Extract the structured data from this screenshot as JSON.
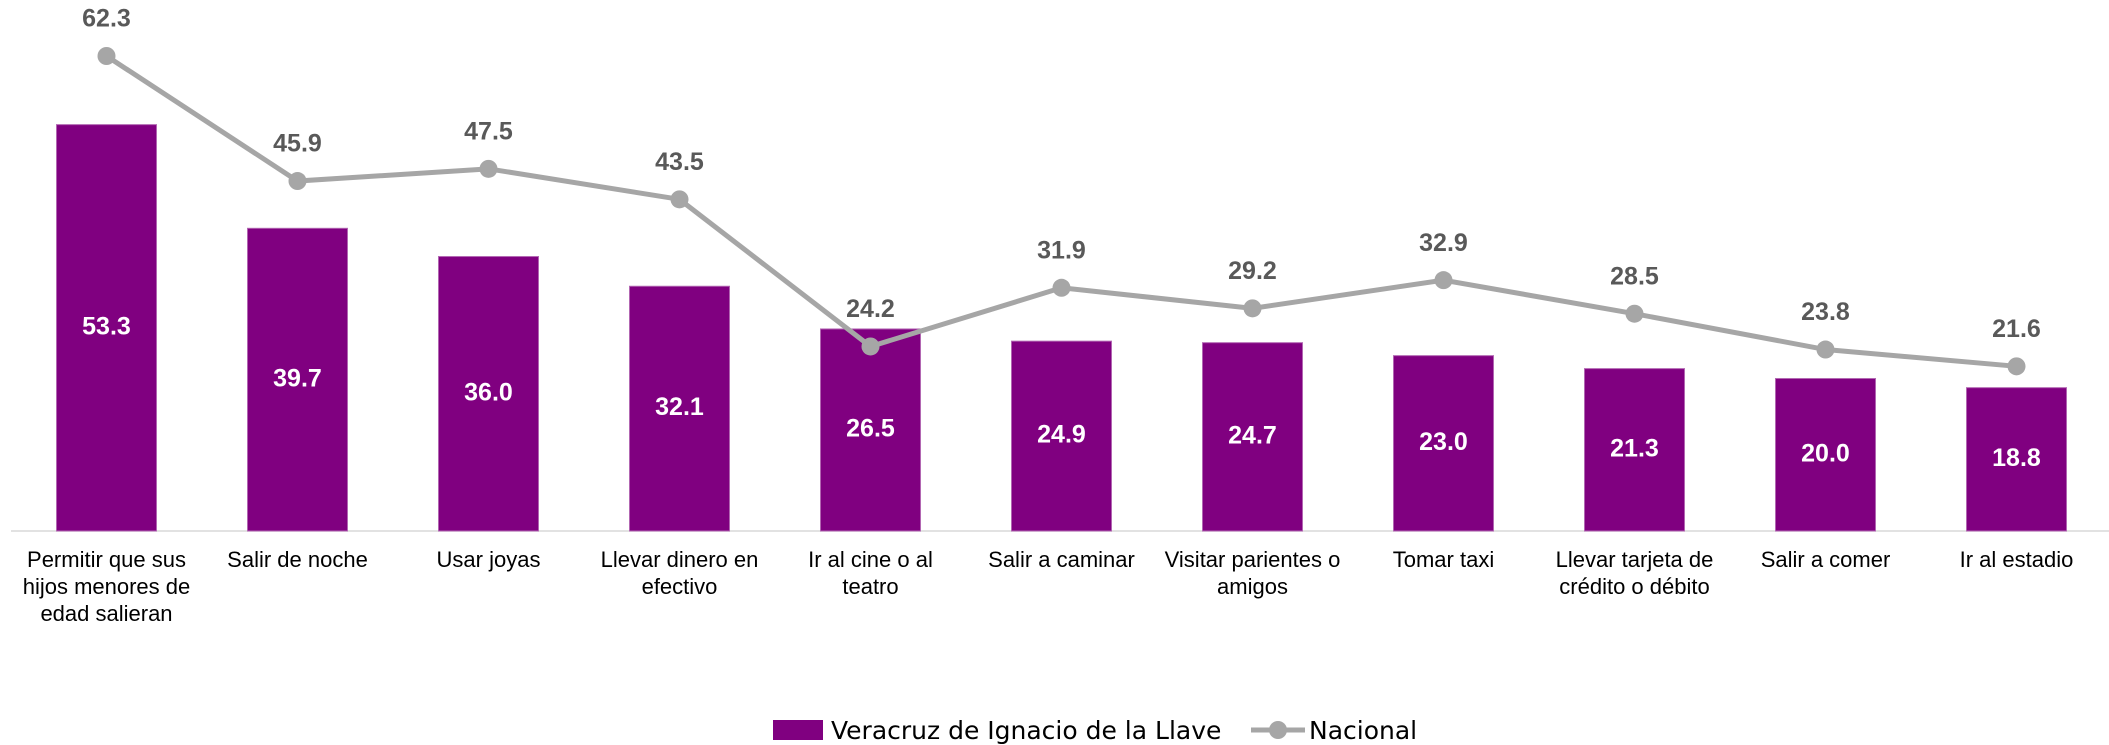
{
  "chart_data": {
    "type": "bar_line",
    "categories": [
      "Permitir que sus hijos menores de edad salieran",
      "Salir de noche",
      "Usar joyas",
      "Llevar dinero en efectivo",
      "Ir al cine o al teatro",
      "Salir a caminar",
      "Visitar parientes o amigos",
      "Tomar taxi",
      "Llevar tarjeta de crédito o débito",
      "Salir a comer",
      "Ir al estadio"
    ],
    "series": [
      {
        "name": "Veracruz de Ignacio de la Llave",
        "color": "#800080",
        "type": "bar",
        "values": [
          53.3,
          39.7,
          36.0,
          32.1,
          26.5,
          24.9,
          24.7,
          23.0,
          21.3,
          20.0,
          18.8
        ],
        "value_labels": [
          "53.3",
          "39.7",
          "36.0",
          "32.1",
          "26.5",
          "24.9",
          "24.7",
          "23.0",
          "21.3",
          "20.0",
          "18.8"
        ]
      },
      {
        "name": "Nacional",
        "color": "#a6a6a6",
        "type": "line",
        "values": [
          62.3,
          45.9,
          47.5,
          43.5,
          24.2,
          31.9,
          29.2,
          32.9,
          28.5,
          23.8,
          21.6
        ]
      }
    ],
    "legend": "bottom"
  }
}
